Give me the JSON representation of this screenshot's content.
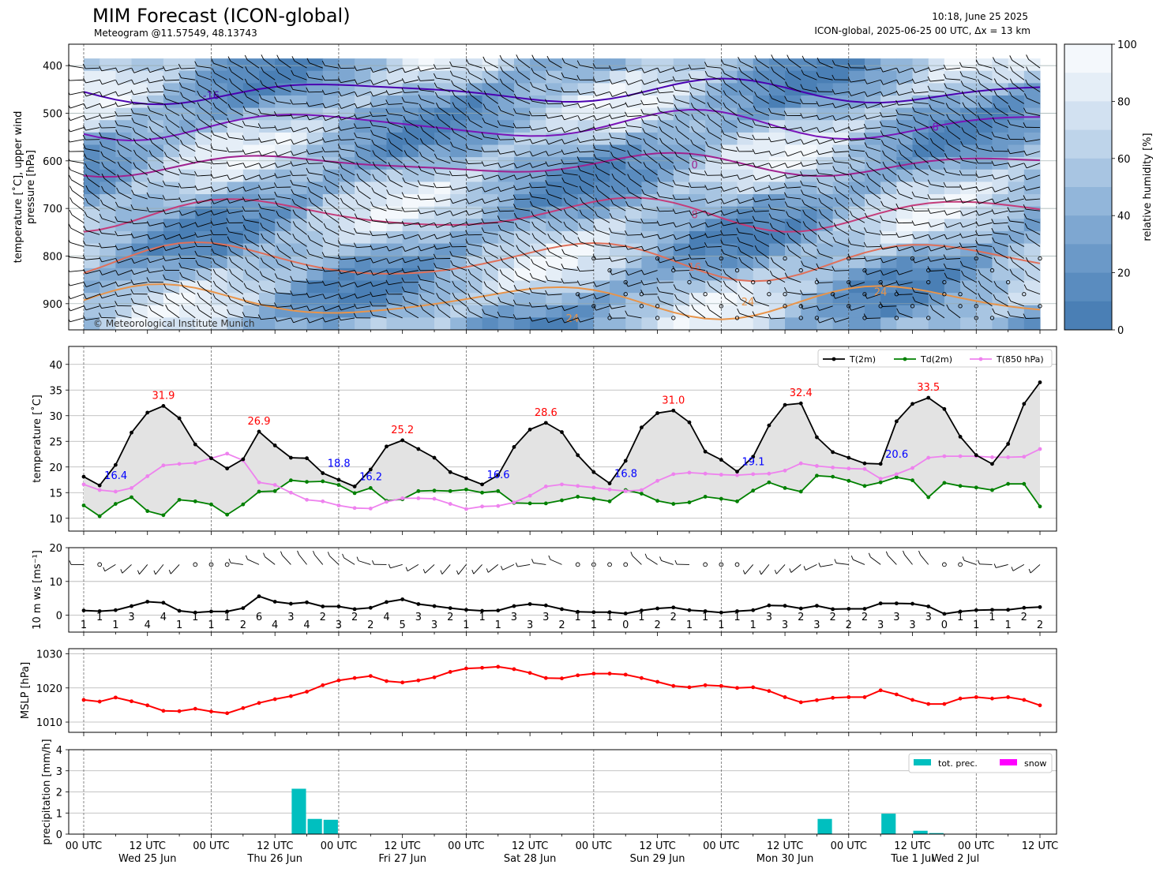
{
  "header": {
    "title": "MIM Forecast (ICON-global)",
    "subtitle": "Meteogram @11.57549, 48.13743",
    "timestamp": "10:18, June 25 2025",
    "model_info": "ICON-global, 2025-06-25 00 UTC, Δx = 13 km"
  },
  "copyright": "© Meteorological Institute Munich",
  "time_axis": {
    "tick_labels": [
      "00 UTC",
      "12 UTC",
      "00 UTC",
      "12 UTC",
      "00 UTC",
      "12 UTC",
      "00 UTC",
      "12 UTC",
      "00 UTC",
      "12 UTC",
      "00 UTC",
      "12 UTC",
      "00 UTC",
      "12 UTC",
      "00 UTC",
      "12 UTC"
    ],
    "day_labels": [
      "Wed 25 Jun",
      "Thu 26 Jun",
      "Fri 27 Jun",
      "Sat 28 Jun",
      "Sun 29 Jun",
      "Mon 30 Jun",
      "Tue 1 Jul",
      "Wed 2 Jul"
    ]
  },
  "colors": {
    "t2m": "#000000",
    "td2m": "#008000",
    "t850": "#ee82ee",
    "mslp": "#ff0000",
    "precip": "#00bfbf",
    "snow": "#ff00ff",
    "max_label": "#ff0000",
    "min_label": "#0000ff",
    "rh_dark": "#4f84b8",
    "rh_light": "#f4f8fc"
  },
  "chart_data": [
    {
      "type": "heatmap",
      "panel": "upper-air",
      "ylabel": "temperature [˚C], upper wind\npressure [hPa]",
      "yticks": [
        400,
        500,
        600,
        700,
        800,
        900
      ],
      "ylim": [
        955,
        355
      ],
      "y_inverted": true,
      "colorbar": {
        "label": "relative humidity [%]",
        "ticks": [
          0,
          20,
          40,
          60,
          80,
          100
        ],
        "range": [
          0,
          100
        ]
      },
      "contour_labels": [
        "-16",
        "-8",
        "0",
        "8",
        "16",
        "24",
        "24",
        "24"
      ]
    },
    {
      "type": "line",
      "panel": "temperature",
      "ylabel": "temperature [˚C]",
      "yticks": [
        10,
        15,
        20,
        25,
        30,
        35,
        40
      ],
      "ylim": [
        7.5,
        43.5
      ],
      "legend": "top-right",
      "x_hours": [
        0,
        3,
        6,
        9,
        12,
        15,
        18,
        21,
        24,
        27,
        30,
        33,
        36,
        39,
        42,
        45,
        48,
        51,
        54,
        57,
        60,
        63,
        66,
        69,
        72,
        75,
        78,
        81,
        84,
        87,
        90,
        93,
        96,
        99,
        102,
        105,
        108,
        111,
        114,
        117,
        120,
        123,
        126,
        129,
        132,
        135,
        138,
        141,
        144,
        147,
        150,
        153,
        156,
        159,
        162,
        165,
        168,
        171,
        174,
        177,
        180
      ],
      "series": [
        {
          "name": "T(2m)",
          "values": [
            18.1,
            16.4,
            20.4,
            26.7,
            30.6,
            31.9,
            29.5,
            24.4,
            21.7,
            19.7,
            21.5,
            26.9,
            24.2,
            21.8,
            21.7,
            18.8,
            17.5,
            16.2,
            19.5,
            24.0,
            25.2,
            23.5,
            21.8,
            19.0,
            17.8,
            16.6,
            18.4,
            23.9,
            27.3,
            28.6,
            26.8,
            22.3,
            19.0,
            16.8,
            21.2,
            27.7,
            30.5,
            31.0,
            28.7,
            23.0,
            21.4,
            19.1,
            22.0,
            28.1,
            32.1,
            32.4,
            25.8,
            22.9,
            21.8,
            20.7,
            20.6,
            28.9,
            32.3,
            33.5,
            31.3,
            25.9,
            22.3,
            20.6,
            24.5,
            32.3,
            36.5
          ]
        },
        {
          "name": "Td(2m)",
          "values": [
            12.5,
            10.4,
            12.8,
            14.1,
            11.4,
            10.6,
            13.6,
            13.3,
            12.7,
            10.7,
            12.7,
            15.2,
            15.3,
            17.4,
            17.1,
            17.2,
            16.5,
            14.9,
            15.9,
            13.4,
            13.7,
            15.3,
            15.4,
            15.3,
            15.6,
            15.0,
            15.3,
            13.0,
            12.9,
            12.9,
            13.5,
            14.2,
            13.8,
            13.3,
            15.5,
            14.8,
            13.4,
            12.8,
            13.1,
            14.2,
            13.8,
            13.3,
            15.4,
            17.0,
            15.9,
            15.2,
            18.3,
            18.1,
            17.3,
            16.3,
            17.0,
            18.0,
            17.4,
            14.1,
            16.9,
            16.3,
            16.0,
            15.5,
            16.7,
            16.7,
            12.3
          ]
        },
        {
          "name": "T(850 hPa)",
          "values": [
            16.6,
            15.5,
            15.2,
            15.9,
            18.2,
            20.3,
            20.6,
            20.8,
            21.7,
            22.6,
            21.3,
            17.0,
            16.5,
            15.0,
            13.6,
            13.3,
            12.5,
            12.0,
            11.9,
            13.2,
            13.9,
            13.9,
            13.8,
            12.8,
            11.8,
            12.3,
            12.4,
            13.1,
            14.4,
            16.2,
            16.6,
            16.3,
            16.0,
            15.6,
            15.3,
            15.5,
            17.3,
            18.6,
            18.9,
            18.7,
            18.5,
            18.4,
            18.6,
            18.7,
            19.3,
            20.7,
            20.2,
            19.9,
            19.7,
            19.6,
            17.7,
            18.6,
            19.8,
            21.8,
            22.1,
            22.1,
            22.1,
            21.9,
            21.9,
            22.0,
            23.5
          ]
        }
      ],
      "max_annotations": [
        {
          "x_hours": 15,
          "value": 31.9,
          "label": "31.9"
        },
        {
          "x_hours": 33,
          "value": 26.9,
          "label": "26.9"
        },
        {
          "x_hours": 60,
          "value": 25.2,
          "label": "25.2"
        },
        {
          "x_hours": 87,
          "value": 28.6,
          "label": "28.6"
        },
        {
          "x_hours": 111,
          "value": 31.0,
          "label": "31.0"
        },
        {
          "x_hours": 135,
          "value": 32.4,
          "label": "32.4"
        },
        {
          "x_hours": 159,
          "value": 33.5,
          "label": "33.5"
        }
      ],
      "min_annotations": [
        {
          "x_hours": 3,
          "value": 16.4,
          "label": "16.4"
        },
        {
          "x_hours": 45,
          "value": 18.8,
          "label": "18.8"
        },
        {
          "x_hours": 51,
          "value": 16.2,
          "label": "16.2"
        },
        {
          "x_hours": 75,
          "value": 16.6,
          "label": "16.6"
        },
        {
          "x_hours": 99,
          "value": 16.8,
          "label": "16.8"
        },
        {
          "x_hours": 123,
          "value": 19.1,
          "label": "19.1"
        },
        {
          "x_hours": 150,
          "value": 20.6,
          "label": "20.6"
        }
      ]
    },
    {
      "type": "line",
      "panel": "wind10m",
      "ylabel": "10 m ws [ms⁻¹]",
      "yticks": [
        0,
        10,
        20
      ],
      "ylim": [
        -5,
        20
      ],
      "x_hours": [
        0,
        3,
        6,
        9,
        12,
        15,
        18,
        21,
        24,
        27,
        30,
        33,
        36,
        39,
        42,
        45,
        48,
        51,
        54,
        57,
        60,
        63,
        66,
        69,
        72,
        75,
        78,
        81,
        84,
        87,
        90,
        93,
        96,
        99,
        102,
        105,
        108,
        111,
        114,
        117,
        120,
        123,
        126,
        129,
        132,
        135,
        138,
        141,
        144,
        147,
        150,
        153,
        156,
        159,
        162,
        165,
        168,
        171,
        174,
        177,
        180
      ],
      "series": [
        {
          "name": "10 m ws",
          "values": [
            1.4,
            1.2,
            1.5,
            2.7,
            4.0,
            3.7,
            1.3,
            0.8,
            1.1,
            1.1,
            2.1,
            5.6,
            4.0,
            3.4,
            3.8,
            2.6,
            2.6,
            1.8,
            2.2,
            3.9,
            4.7,
            3.3,
            2.7,
            2.1,
            1.6,
            1.3,
            1.4,
            2.7,
            3.3,
            2.9,
            1.8,
            1.0,
            0.9,
            0.9,
            0.5,
            1.4,
            2.0,
            2.3,
            1.5,
            1.2,
            0.8,
            1.2,
            1.5,
            2.9,
            2.8,
            2.0,
            2.8,
            1.8,
            1.9,
            1.9,
            3.5,
            3.5,
            3.4,
            2.6,
            0.4,
            1.1,
            1.5,
            1.6,
            1.6,
            2.2,
            2.4
          ]
        }
      ],
      "speed_labels": [
        "1",
        "1",
        "1",
        "3",
        "4",
        "4",
        "1",
        "1",
        "1",
        "1",
        "2",
        "6",
        "4",
        "3",
        "4",
        "2",
        "3",
        "2",
        "2",
        "4",
        "5",
        "3",
        "3",
        "2",
        "1",
        "1",
        "1",
        "3",
        "3",
        "3",
        "2",
        "1",
        "1",
        "1",
        "0",
        "1",
        "2",
        "2",
        "1",
        "1",
        "1",
        "1",
        "1",
        "3",
        "3",
        "2",
        "3",
        "2",
        "2",
        "2",
        "3",
        "3",
        "3",
        "3",
        "0",
        "1",
        "1",
        "1",
        "1",
        "2",
        "2"
      ]
    },
    {
      "type": "line",
      "panel": "mslp",
      "ylabel": "MSLP [hPa]",
      "yticks": [
        1010,
        1020,
        1030
      ],
      "ylim": [
        1007,
        1031.5
      ],
      "x_hours": [
        0,
        3,
        6,
        9,
        12,
        15,
        18,
        21,
        24,
        27,
        30,
        33,
        36,
        39,
        42,
        45,
        48,
        51,
        54,
        57,
        60,
        63,
        66,
        69,
        72,
        75,
        78,
        81,
        84,
        87,
        90,
        93,
        96,
        99,
        102,
        105,
        108,
        111,
        114,
        117,
        120,
        123,
        126,
        129,
        132,
        135,
        138,
        141,
        144,
        147,
        150,
        153,
        156,
        159,
        162,
        165,
        168,
        171,
        174,
        177,
        180
      ],
      "series": [
        {
          "name": "MSLP",
          "values": [
            1016.5,
            1016.0,
            1017.2,
            1016.1,
            1014.9,
            1013.3,
            1013.2,
            1013.9,
            1013.1,
            1012.6,
            1014.1,
            1015.6,
            1016.7,
            1017.6,
            1018.9,
            1020.8,
            1022.2,
            1022.9,
            1023.5,
            1022.0,
            1021.6,
            1022.2,
            1023.1,
            1024.7,
            1025.7,
            1025.9,
            1026.2,
            1025.5,
            1024.4,
            1022.9,
            1022.8,
            1023.7,
            1024.2,
            1024.2,
            1023.9,
            1022.9,
            1021.8,
            1020.6,
            1020.2,
            1020.8,
            1020.6,
            1020.0,
            1020.2,
            1019.1,
            1017.3,
            1015.8,
            1016.4,
            1017.1,
            1017.3,
            1017.3,
            1019.3,
            1018.1,
            1016.5,
            1015.3,
            1015.3,
            1016.9,
            1017.3,
            1016.9,
            1017.3,
            1016.5,
            1014.9
          ]
        }
      ]
    },
    {
      "type": "bar",
      "panel": "precipitation",
      "ylabel": "precipitation [mm/h]",
      "yticks": [
        0,
        1,
        2,
        3,
        4
      ],
      "ylim": [
        0,
        4
      ],
      "legend": "top-right",
      "series": [
        {
          "name": "tot. prec.",
          "x_hours": [
            39,
            42,
            45,
            138,
            150,
            156,
            159
          ],
          "values": [
            2.15,
            0.72,
            0.68,
            0.72,
            0.97,
            0.16,
            0.05
          ]
        },
        {
          "name": "snow",
          "x_hours": [],
          "values": []
        }
      ]
    }
  ]
}
